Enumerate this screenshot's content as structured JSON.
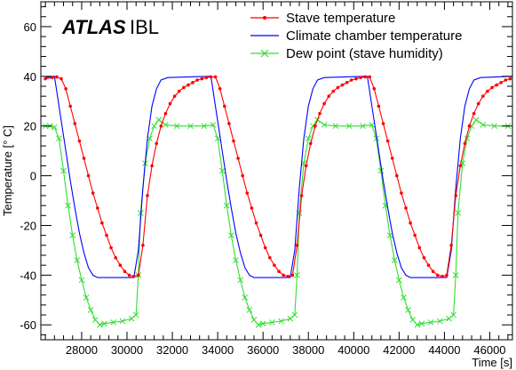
{
  "chart_data": {
    "type": "line",
    "xlabel": "Time [s]",
    "ylabel": "Temperature  [° C]",
    "xlim": [
      26200,
      47000
    ],
    "ylim": [
      -66,
      70
    ],
    "x_ticks": [
      28000,
      30000,
      32000,
      34000,
      36000,
      38000,
      40000,
      42000,
      44000,
      46000
    ],
    "y_ticks": [
      -60,
      -40,
      -20,
      0,
      20,
      40,
      60
    ],
    "annotation": {
      "brand": "ATLAS",
      "suffix": "IBL"
    },
    "legend_position": "top-right",
    "series": [
      {
        "name": "Stave temperature",
        "color": "#ff0000",
        "marker": "dot",
        "points": [
          [
            26400,
            39
          ],
          [
            26700,
            39.5
          ],
          [
            26900,
            39.8
          ],
          [
            27100,
            39
          ],
          [
            27300,
            35
          ],
          [
            27500,
            28
          ],
          [
            27700,
            21
          ],
          [
            27900,
            14
          ],
          [
            28100,
            7
          ],
          [
            28300,
            0
          ],
          [
            28500,
            -7
          ],
          [
            28700,
            -13
          ],
          [
            28900,
            -19
          ],
          [
            29100,
            -24
          ],
          [
            29300,
            -29
          ],
          [
            29500,
            -33
          ],
          [
            29700,
            -36
          ],
          [
            29900,
            -38.5
          ],
          [
            30100,
            -40
          ],
          [
            30300,
            -40.5
          ],
          [
            30500,
            -40
          ],
          [
            30700,
            -28
          ],
          [
            30900,
            -8
          ],
          [
            31100,
            4
          ],
          [
            31300,
            13
          ],
          [
            31500,
            20
          ],
          [
            31700,
            25
          ],
          [
            31900,
            29
          ],
          [
            32100,
            32
          ],
          [
            32300,
            34
          ],
          [
            32500,
            35.5
          ],
          [
            32700,
            36.5
          ],
          [
            32900,
            37.5
          ],
          [
            33100,
            38.5
          ],
          [
            33300,
            39
          ],
          [
            33500,
            39.5
          ],
          [
            33700,
            39.8
          ],
          [
            33900,
            39.8
          ],
          [
            34100,
            35
          ],
          [
            34300,
            28
          ],
          [
            34500,
            21
          ],
          [
            34700,
            14
          ],
          [
            34900,
            7
          ],
          [
            35100,
            0
          ],
          [
            35300,
            -7
          ],
          [
            35500,
            -13
          ],
          [
            35700,
            -19
          ],
          [
            35900,
            -24
          ],
          [
            36100,
            -29
          ],
          [
            36300,
            -33
          ],
          [
            36500,
            -36
          ],
          [
            36700,
            -38.5
          ],
          [
            36900,
            -40
          ],
          [
            37100,
            -40.5
          ],
          [
            37300,
            -40
          ],
          [
            37500,
            -28
          ],
          [
            37700,
            -8
          ],
          [
            37900,
            4
          ],
          [
            38100,
            13
          ],
          [
            38300,
            20
          ],
          [
            38500,
            25
          ],
          [
            38700,
            29
          ],
          [
            38900,
            32
          ],
          [
            39100,
            34
          ],
          [
            39300,
            35.5
          ],
          [
            39500,
            36.5
          ],
          [
            39700,
            37.5
          ],
          [
            39900,
            38.5
          ],
          [
            40100,
            39
          ],
          [
            40300,
            39.5
          ],
          [
            40500,
            39.8
          ],
          [
            40700,
            39.8
          ],
          [
            40900,
            35
          ],
          [
            41100,
            28
          ],
          [
            41300,
            21
          ],
          [
            41500,
            14
          ],
          [
            41700,
            7
          ],
          [
            41900,
            0
          ],
          [
            42100,
            -7
          ],
          [
            42300,
            -13
          ],
          [
            42500,
            -19
          ],
          [
            42700,
            -24
          ],
          [
            42900,
            -29
          ],
          [
            43100,
            -33
          ],
          [
            43300,
            -36
          ],
          [
            43500,
            -38.5
          ],
          [
            43700,
            -40
          ],
          [
            43900,
            -40.5
          ],
          [
            44100,
            -40
          ],
          [
            44300,
            -28
          ],
          [
            44500,
            -8
          ],
          [
            44700,
            4
          ],
          [
            44900,
            13
          ],
          [
            45100,
            20
          ],
          [
            45300,
            25
          ],
          [
            45500,
            29
          ],
          [
            45700,
            32
          ],
          [
            45900,
            34
          ],
          [
            46100,
            35.5
          ],
          [
            46300,
            36.5
          ],
          [
            46500,
            37.5
          ],
          [
            46700,
            38.5
          ],
          [
            46900,
            39
          ]
        ]
      },
      {
        "name": "Climate chamber temperature",
        "color": "#0000ff",
        "marker": "none",
        "points": [
          [
            26400,
            39.5
          ],
          [
            26700,
            40
          ],
          [
            26800,
            40
          ],
          [
            26900,
            34
          ],
          [
            27100,
            22
          ],
          [
            27300,
            10
          ],
          [
            27500,
            -2
          ],
          [
            27700,
            -13
          ],
          [
            27900,
            -23
          ],
          [
            28100,
            -31
          ],
          [
            28300,
            -37
          ],
          [
            28500,
            -40
          ],
          [
            28700,
            -41
          ],
          [
            30300,
            -41
          ],
          [
            30500,
            -30
          ],
          [
            30700,
            -5
          ],
          [
            30900,
            15
          ],
          [
            31100,
            28
          ],
          [
            31300,
            35
          ],
          [
            31500,
            38.5
          ],
          [
            31800,
            39.5
          ],
          [
            33600,
            40
          ],
          [
            33700,
            40
          ],
          [
            33800,
            34
          ],
          [
            34000,
            22
          ],
          [
            34200,
            10
          ],
          [
            34400,
            -2
          ],
          [
            34600,
            -13
          ],
          [
            34800,
            -23
          ],
          [
            35000,
            -31
          ],
          [
            35200,
            -37
          ],
          [
            35400,
            -40
          ],
          [
            35600,
            -41
          ],
          [
            37200,
            -41
          ],
          [
            37400,
            -30
          ],
          [
            37600,
            -5
          ],
          [
            37800,
            15
          ],
          [
            38000,
            28
          ],
          [
            38200,
            35
          ],
          [
            38400,
            38.5
          ],
          [
            38700,
            39.5
          ],
          [
            40500,
            40
          ],
          [
            40600,
            40
          ],
          [
            40700,
            34
          ],
          [
            40900,
            22
          ],
          [
            41100,
            10
          ],
          [
            41300,
            -2
          ],
          [
            41500,
            -13
          ],
          [
            41700,
            -23
          ],
          [
            41900,
            -31
          ],
          [
            42100,
            -37
          ],
          [
            42300,
            -40
          ],
          [
            42500,
            -41
          ],
          [
            44100,
            -41
          ],
          [
            44300,
            -30
          ],
          [
            44500,
            -5
          ],
          [
            44700,
            15
          ],
          [
            44900,
            28
          ],
          [
            45100,
            35
          ],
          [
            45300,
            38.5
          ],
          [
            45600,
            39.5
          ],
          [
            47000,
            40
          ]
        ]
      },
      {
        "name": "Dew point (stave humidity)",
        "color": "#33dd33",
        "marker": "x",
        "points": [
          [
            26400,
            20
          ],
          [
            26600,
            20
          ],
          [
            26800,
            19.5
          ],
          [
            27000,
            15
          ],
          [
            27200,
            2
          ],
          [
            27400,
            -12
          ],
          [
            27600,
            -24
          ],
          [
            27800,
            -34
          ],
          [
            28000,
            -42
          ],
          [
            28200,
            -49
          ],
          [
            28400,
            -54
          ],
          [
            28600,
            -58
          ],
          [
            28800,
            -60
          ],
          [
            29000,
            -59.5
          ],
          [
            29400,
            -59
          ],
          [
            29800,
            -58.5
          ],
          [
            30200,
            -57.5
          ],
          [
            30400,
            -56
          ],
          [
            30500,
            -40
          ],
          [
            30600,
            -15
          ],
          [
            30800,
            5
          ],
          [
            31000,
            15
          ],
          [
            31200,
            20
          ],
          [
            31400,
            22.5
          ],
          [
            31700,
            20.5
          ],
          [
            32200,
            20
          ],
          [
            32800,
            20
          ],
          [
            33400,
            20
          ],
          [
            33800,
            20.5
          ],
          [
            34000,
            15
          ],
          [
            34200,
            2
          ],
          [
            34400,
            -12
          ],
          [
            34600,
            -24
          ],
          [
            34800,
            -34
          ],
          [
            35000,
            -42
          ],
          [
            35200,
            -49
          ],
          [
            35400,
            -54
          ],
          [
            35600,
            -58
          ],
          [
            35800,
            -60
          ],
          [
            36000,
            -59.5
          ],
          [
            36400,
            -59
          ],
          [
            36800,
            -58.5
          ],
          [
            37200,
            -57.5
          ],
          [
            37400,
            -56
          ],
          [
            37500,
            -40
          ],
          [
            37600,
            -15
          ],
          [
            37800,
            5
          ],
          [
            38000,
            15
          ],
          [
            38200,
            20
          ],
          [
            38400,
            22.5
          ],
          [
            38700,
            20.5
          ],
          [
            39200,
            20
          ],
          [
            39800,
            20
          ],
          [
            40400,
            20
          ],
          [
            40800,
            20.5
          ],
          [
            41000,
            15
          ],
          [
            41200,
            2
          ],
          [
            41400,
            -12
          ],
          [
            41600,
            -24
          ],
          [
            41800,
            -34
          ],
          [
            42000,
            -42
          ],
          [
            42200,
            -49
          ],
          [
            42400,
            -54
          ],
          [
            42600,
            -58
          ],
          [
            42800,
            -60
          ],
          [
            43000,
            -59.5
          ],
          [
            43400,
            -59
          ],
          [
            43800,
            -58.5
          ],
          [
            44200,
            -57.5
          ],
          [
            44400,
            -56
          ],
          [
            44500,
            -40
          ],
          [
            44600,
            -15
          ],
          [
            44800,
            5
          ],
          [
            45000,
            15
          ],
          [
            45200,
            20
          ],
          [
            45400,
            22.5
          ],
          [
            45700,
            20.5
          ],
          [
            46200,
            20
          ],
          [
            46800,
            20
          ]
        ]
      }
    ]
  }
}
